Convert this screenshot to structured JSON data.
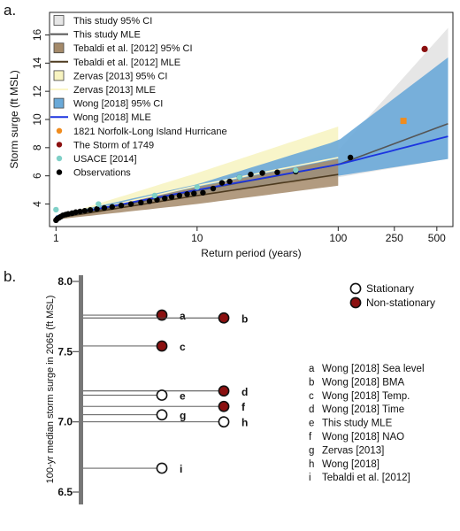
{
  "chart_data": [
    {
      "panel": "a.",
      "type": "line",
      "xlabel": "Return period (years)",
      "ylabel": "Storm surge (ft MSL)",
      "x_scale": "log",
      "xlim": [
        0.9,
        650
      ],
      "ylim": [
        2.4,
        17.6
      ],
      "xticks": [
        1,
        10,
        100,
        250,
        500
      ],
      "xtick_labels": [
        "1",
        "10",
        "100",
        "250",
        "500"
      ],
      "yticks": [
        4,
        6,
        8,
        10,
        12,
        14,
        16
      ],
      "ytick_labels": [
        "4",
        "6",
        "8",
        "10",
        "12",
        "14",
        "16"
      ],
      "grid": false,
      "legend": "top-left",
      "legend_items": [
        {
          "label": "This study 95% CI",
          "kind": "box",
          "color": "#e6e6e6"
        },
        {
          "label": "This study MLE",
          "kind": "line",
          "color": "#555555"
        },
        {
          "label": "Tebaldi et al. [2012] 95% CI",
          "kind": "box",
          "color": "#a48a6a"
        },
        {
          "label": "Tebaldi et al. [2012] MLE",
          "kind": "line",
          "color": "#4d3a1f"
        },
        {
          "label": "Zervas [2013] 95% CI",
          "kind": "box",
          "color": "#f7f3c0"
        },
        {
          "label": "Zervas [2013] MLE",
          "kind": "line",
          "color": "#fbf6c8"
        },
        {
          "label": "Wong [2018] 95% CI",
          "kind": "box",
          "color": "#6aa9d8"
        },
        {
          "label": "Wong [2018] MLE",
          "kind": "line",
          "color": "#1b34e0"
        },
        {
          "label": "1821 Norfolk-Long Island Hurricane",
          "kind": "dot",
          "color": "#f08c1e"
        },
        {
          "label": "The Storm of 1749",
          "kind": "dot",
          "color": "#8b1010"
        },
        {
          "label": "USACE [2014]",
          "kind": "dot",
          "color": "#7fd0c7"
        },
        {
          "label": "Observations",
          "kind": "dot",
          "color": "#000000"
        }
      ],
      "series": [
        {
          "name": "This study MLE",
          "x": [
            1,
            10,
            100,
            600
          ],
          "y": [
            3.0,
            4.95,
            6.8,
            9.7
          ]
        },
        {
          "name": "This study 95% CI",
          "x": [
            1,
            10,
            100,
            600
          ],
          "y_lower": [
            2.9,
            4.6,
            5.9,
            7.2
          ],
          "y_upper": [
            3.1,
            5.3,
            7.8,
            16.5
          ]
        },
        {
          "name": "Tebaldi et al. [2012] MLE",
          "x": [
            1,
            10,
            100
          ],
          "y": [
            3.0,
            4.6,
            6.1
          ]
        },
        {
          "name": "Tebaldi et al. [2012] 95% CI",
          "x": [
            1,
            10,
            100
          ],
          "y_lower": [
            2.9,
            4.0,
            5.3
          ],
          "y_upper": [
            3.1,
            5.2,
            7.2
          ]
        },
        {
          "name": "Zervas [2013] MLE",
          "x": [
            1,
            10,
            100
          ],
          "y": [
            3.0,
            5.3,
            7.3
          ]
        },
        {
          "name": "Zervas [2013] 95% CI",
          "x": [
            1,
            10,
            100
          ],
          "y_lower": [
            2.9,
            4.6,
            6.0
          ],
          "y_upper": [
            3.1,
            6.2,
            9.5
          ]
        },
        {
          "name": "Wong [2018] MLE",
          "x": [
            1,
            10,
            100,
            600
          ],
          "y": [
            3.1,
            5.0,
            6.8,
            8.8
          ]
        },
        {
          "name": "Wong [2018] 95% CI",
          "x": [
            1,
            10,
            100,
            600
          ],
          "y_lower": [
            2.9,
            4.7,
            6.0,
            7.2
          ],
          "y_upper": [
            3.2,
            5.4,
            8.5,
            14.4
          ]
        },
        {
          "name": "1821 Norfolk-Long Island Hurricane",
          "x": [
            290
          ],
          "y": [
            9.9
          ]
        },
        {
          "name": "The Storm of 1749",
          "x": [
            410
          ],
          "y": [
            15.0
          ]
        },
        {
          "name": "USACE [2014]",
          "x": [
            1,
            2,
            5,
            10,
            20,
            50
          ],
          "y": [
            3.6,
            4.0,
            4.6,
            5.2,
            5.9,
            6.4
          ]
        },
        {
          "name": "Observations",
          "x": [
            1.0,
            1.02,
            1.05,
            1.08,
            1.12,
            1.17,
            1.22,
            1.3,
            1.38,
            1.48,
            1.6,
            1.75,
            1.95,
            2.2,
            2.5,
            2.9,
            3.4,
            4.0,
            4.6,
            5.2,
            5.9,
            6.6,
            7.5,
            8.5,
            9.5,
            11,
            13,
            15,
            17,
            20,
            24,
            29,
            37,
            50,
            122
          ],
          "y": [
            2.85,
            2.95,
            3.02,
            3.1,
            3.2,
            3.25,
            3.3,
            3.35,
            3.42,
            3.47,
            3.52,
            3.58,
            3.65,
            3.72,
            3.8,
            3.9,
            4.0,
            4.1,
            4.2,
            4.3,
            4.4,
            4.5,
            4.6,
            4.7,
            4.75,
            4.8,
            5.1,
            5.5,
            5.6,
            5.9,
            6.1,
            6.2,
            6.25,
            6.3,
            7.3
          ]
        }
      ]
    },
    {
      "panel": "b.",
      "type": "scatter",
      "ylabel": "100-yr median storm surge in 2065 (ft MSL)",
      "ylim": [
        6.45,
        8.05
      ],
      "yticks": [
        6.5,
        7.0,
        7.5,
        8.0
      ],
      "ytick_labels": [
        "6.5",
        "7.0",
        "7.5",
        "8.0"
      ],
      "legend": "right",
      "legend_items": [
        {
          "label": "Stationary",
          "fill": "#ffffff"
        },
        {
          "label": "Non-stationary",
          "fill": "#8b1010"
        }
      ],
      "points": [
        {
          "id": "a",
          "value": 7.76,
          "column": 1,
          "stationary": false
        },
        {
          "id": "b",
          "value": 7.74,
          "column": 2,
          "stationary": false
        },
        {
          "id": "c",
          "value": 7.54,
          "column": 1,
          "stationary": false
        },
        {
          "id": "d",
          "value": 7.22,
          "column": 2,
          "stationary": false
        },
        {
          "id": "e",
          "value": 7.19,
          "column": 1,
          "stationary": true
        },
        {
          "id": "f",
          "value": 7.11,
          "column": 2,
          "stationary": false
        },
        {
          "id": "g",
          "value": 7.05,
          "column": 1,
          "stationary": true
        },
        {
          "id": "h",
          "value": 7.0,
          "column": 2,
          "stationary": true
        },
        {
          "id": "i",
          "value": 6.67,
          "column": 1,
          "stationary": true
        }
      ],
      "key": [
        {
          "letter": "a",
          "text": "Wong [2018] Sea level"
        },
        {
          "letter": "b",
          "text": "Wong [2018] BMA"
        },
        {
          "letter": "c",
          "text": "Wong [2018] Temp."
        },
        {
          "letter": "d",
          "text": "Wong [2018] Time"
        },
        {
          "letter": "e",
          "text": "This study MLE"
        },
        {
          "letter": "f",
          "text": "Wong [2018] NAO"
        },
        {
          "letter": "g",
          "text": "Zervas [2013]"
        },
        {
          "letter": "h",
          "text": "Wong [2018]"
        },
        {
          "letter": "i",
          "text": "Tebaldi et al. [2012]"
        }
      ]
    }
  ]
}
